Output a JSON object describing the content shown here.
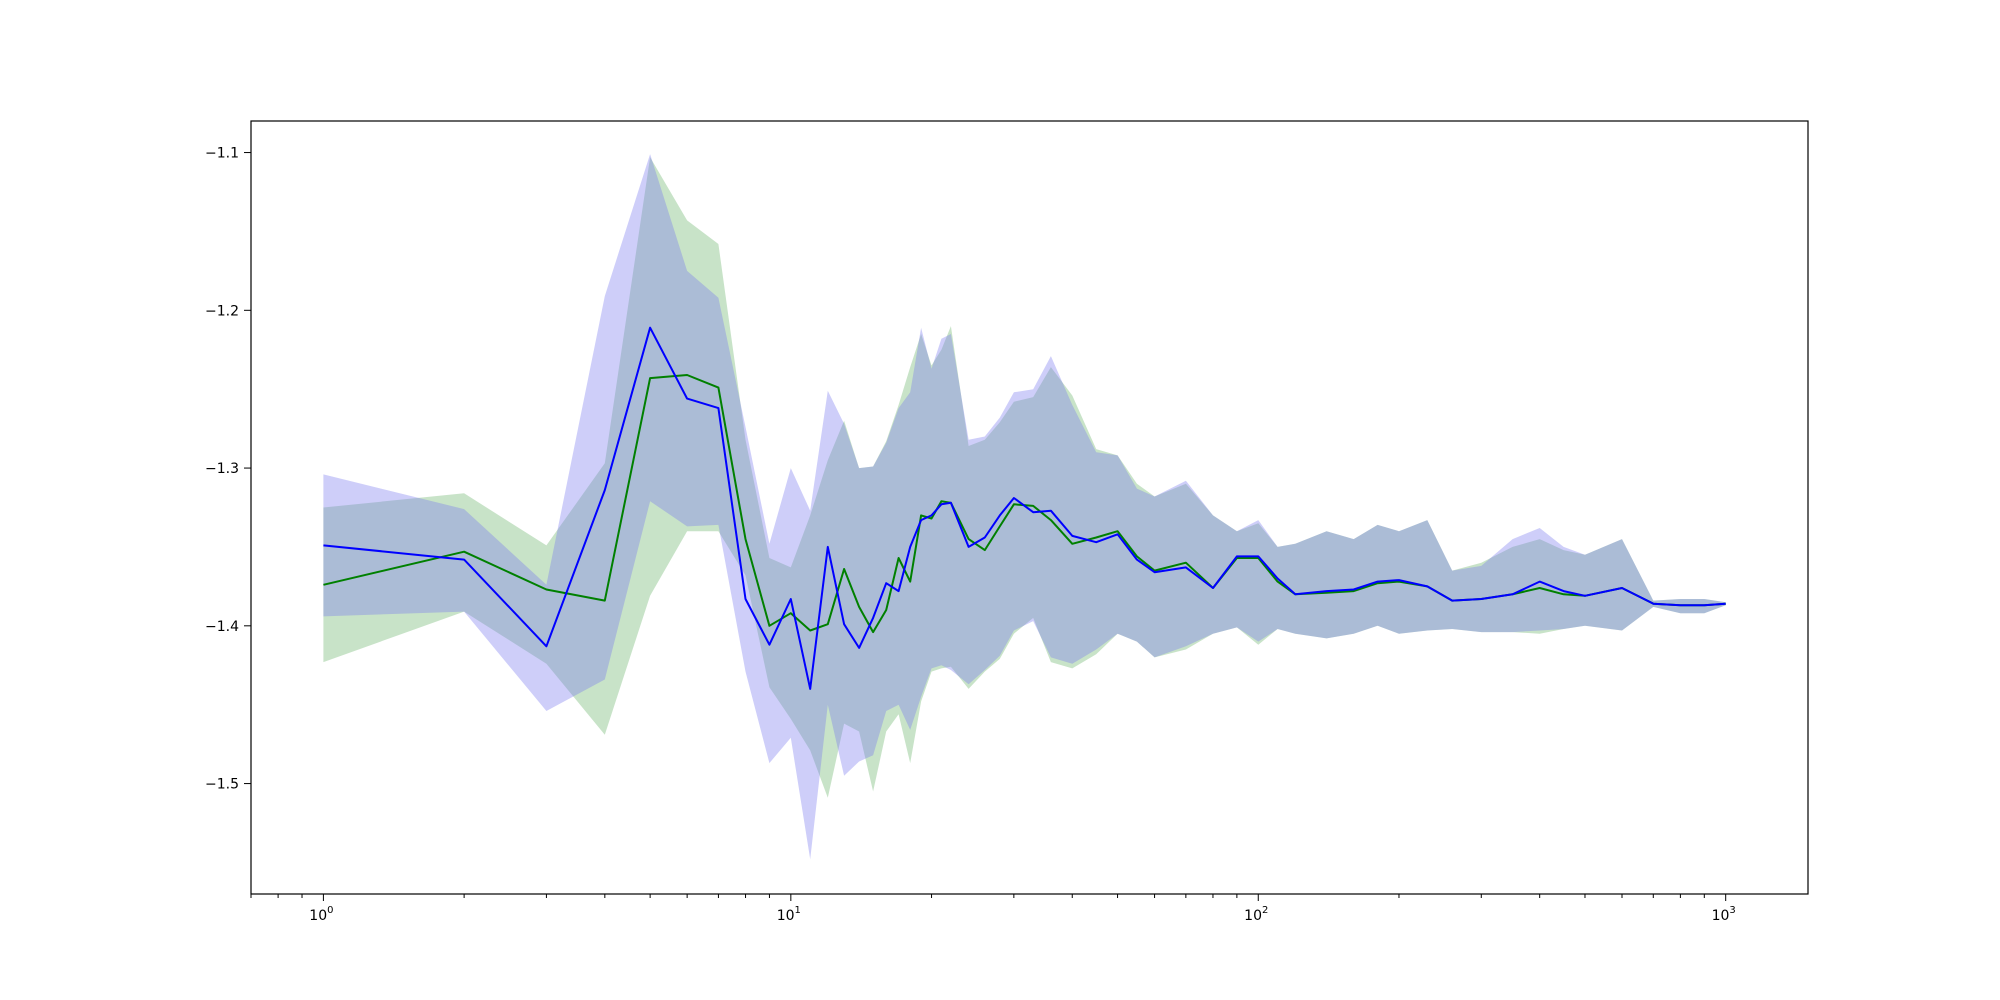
{
  "chart_data": {
    "type": "line",
    "title": "",
    "xlabel": "",
    "ylabel": "",
    "x_scale": "log",
    "xlim": [
      0.7,
      1500
    ],
    "ylim": [
      -1.57,
      -1.08
    ],
    "grid": false,
    "legend": "none",
    "x_ticks": [
      {
        "value": 1,
        "base": "10",
        "exp": "0"
      },
      {
        "value": 10,
        "base": "10",
        "exp": "1"
      },
      {
        "value": 100,
        "base": "10",
        "exp": "2"
      },
      {
        "value": 1000,
        "base": "10",
        "exp": "3"
      }
    ],
    "y_ticks": [
      {
        "value": -1.1,
        "label": "−1.1"
      },
      {
        "value": -1.2,
        "label": "−1.2"
      },
      {
        "value": -1.3,
        "label": "−1.3"
      },
      {
        "value": -1.4,
        "label": "−1.4"
      },
      {
        "value": -1.5,
        "label": "−1.5"
      }
    ],
    "series": [
      {
        "color": "#008000",
        "band_color": "#66b266",
        "x": [
          1,
          2,
          3,
          4,
          5,
          6,
          7,
          8,
          9,
          10,
          11,
          12,
          13,
          14,
          15,
          16,
          17,
          18,
          19,
          20,
          21,
          22,
          24,
          26,
          28,
          30,
          33,
          36,
          40,
          45,
          50,
          55,
          60,
          70,
          80,
          90,
          100,
          110,
          120,
          140,
          160,
          180,
          200,
          230,
          260,
          300,
          350,
          400,
          450,
          500,
          600,
          700,
          800,
          900,
          1000
        ],
        "y": [
          -1.374,
          -1.353,
          -1.377,
          -1.384,
          -1.243,
          -1.241,
          -1.249,
          -1.345,
          -1.4,
          -1.392,
          -1.403,
          -1.399,
          -1.364,
          -1.388,
          -1.404,
          -1.39,
          -1.357,
          -1.372,
          -1.33,
          -1.332,
          -1.321,
          -1.322,
          -1.345,
          -1.352,
          -1.337,
          -1.323,
          -1.324,
          -1.333,
          -1.348,
          -1.344,
          -1.34,
          -1.356,
          -1.365,
          -1.36,
          -1.376,
          -1.357,
          -1.357,
          -1.372,
          -1.38,
          -1.379,
          -1.378,
          -1.373,
          -1.372,
          -1.375,
          -1.384,
          -1.383,
          -1.38,
          -1.376,
          -1.38,
          -1.381,
          -1.376,
          -1.386,
          -1.387,
          -1.387,
          -1.386
        ],
        "upper": [
          -1.325,
          -1.316,
          -1.349,
          -1.297,
          -1.103,
          -1.143,
          -1.158,
          -1.282,
          -1.357,
          -1.363,
          -1.33,
          -1.295,
          -1.27,
          -1.3,
          -1.299,
          -1.283,
          -1.26,
          -1.236,
          -1.215,
          -1.235,
          -1.225,
          -1.21,
          -1.286,
          -1.282,
          -1.271,
          -1.258,
          -1.255,
          -1.236,
          -1.254,
          -1.288,
          -1.292,
          -1.31,
          -1.318,
          -1.31,
          -1.33,
          -1.34,
          -1.335,
          -1.35,
          -1.348,
          -1.34,
          -1.345,
          -1.336,
          -1.34,
          -1.333,
          -1.365,
          -1.36,
          -1.35,
          -1.345,
          -1.352,
          -1.355,
          -1.345,
          -1.384,
          -1.383,
          -1.383,
          -1.385
        ],
        "lower": [
          -1.423,
          -1.391,
          -1.424,
          -1.469,
          -1.381,
          -1.34,
          -1.34,
          -1.368,
          -1.439,
          -1.459,
          -1.479,
          -1.509,
          -1.462,
          -1.467,
          -1.505,
          -1.467,
          -1.456,
          -1.487,
          -1.448,
          -1.429,
          -1.427,
          -1.426,
          -1.44,
          -1.429,
          -1.421,
          -1.405,
          -1.395,
          -1.423,
          -1.427,
          -1.418,
          -1.405,
          -1.41,
          -1.42,
          -1.415,
          -1.405,
          -1.401,
          -1.412,
          -1.402,
          -1.405,
          -1.408,
          -1.405,
          -1.4,
          -1.405,
          -1.403,
          -1.402,
          -1.404,
          -1.404,
          -1.405,
          -1.402,
          -1.4,
          -1.403,
          -1.388,
          -1.392,
          -1.392,
          -1.387
        ]
      },
      {
        "color": "#0000ff",
        "band_color": "#7777ee",
        "x": [
          1,
          2,
          3,
          4,
          5,
          6,
          7,
          8,
          9,
          10,
          11,
          12,
          13,
          14,
          15,
          16,
          17,
          18,
          19,
          20,
          21,
          22,
          24,
          26,
          28,
          30,
          33,
          36,
          40,
          45,
          50,
          55,
          60,
          70,
          80,
          90,
          100,
          110,
          120,
          140,
          160,
          180,
          200,
          230,
          260,
          300,
          350,
          400,
          450,
          500,
          600,
          700,
          800,
          900,
          1000
        ],
        "y": [
          -1.349,
          -1.358,
          -1.413,
          -1.314,
          -1.211,
          -1.256,
          -1.262,
          -1.383,
          -1.412,
          -1.383,
          -1.44,
          -1.35,
          -1.399,
          -1.414,
          -1.395,
          -1.373,
          -1.378,
          -1.35,
          -1.333,
          -1.33,
          -1.323,
          -1.322,
          -1.35,
          -1.344,
          -1.33,
          -1.319,
          -1.328,
          -1.327,
          -1.343,
          -1.347,
          -1.342,
          -1.358,
          -1.366,
          -1.363,
          -1.376,
          -1.356,
          -1.356,
          -1.37,
          -1.38,
          -1.378,
          -1.377,
          -1.372,
          -1.371,
          -1.375,
          -1.384,
          -1.383,
          -1.38,
          -1.372,
          -1.378,
          -1.381,
          -1.376,
          -1.386,
          -1.387,
          -1.387,
          -1.386
        ],
        "upper": [
          -1.304,
          -1.326,
          -1.374,
          -1.191,
          -1.101,
          -1.175,
          -1.192,
          -1.274,
          -1.348,
          -1.3,
          -1.327,
          -1.251,
          -1.272,
          -1.3,
          -1.299,
          -1.284,
          -1.262,
          -1.252,
          -1.211,
          -1.237,
          -1.218,
          -1.215,
          -1.282,
          -1.28,
          -1.268,
          -1.252,
          -1.25,
          -1.229,
          -1.26,
          -1.29,
          -1.292,
          -1.313,
          -1.318,
          -1.308,
          -1.33,
          -1.34,
          -1.333,
          -1.35,
          -1.348,
          -1.34,
          -1.345,
          -1.336,
          -1.34,
          -1.333,
          -1.365,
          -1.362,
          -1.345,
          -1.338,
          -1.35,
          -1.355,
          -1.345,
          -1.384,
          -1.383,
          -1.383,
          -1.385
        ],
        "lower": [
          -1.394,
          -1.391,
          -1.454,
          -1.434,
          -1.321,
          -1.337,
          -1.336,
          -1.429,
          -1.487,
          -1.471,
          -1.548,
          -1.45,
          -1.495,
          -1.486,
          -1.482,
          -1.454,
          -1.45,
          -1.466,
          -1.445,
          -1.427,
          -1.425,
          -1.428,
          -1.437,
          -1.428,
          -1.419,
          -1.403,
          -1.397,
          -1.42,
          -1.424,
          -1.415,
          -1.405,
          -1.41,
          -1.42,
          -1.413,
          -1.405,
          -1.401,
          -1.41,
          -1.402,
          -1.405,
          -1.408,
          -1.405,
          -1.4,
          -1.405,
          -1.403,
          -1.402,
          -1.404,
          -1.404,
          -1.403,
          -1.402,
          -1.4,
          -1.403,
          -1.388,
          -1.392,
          -1.392,
          -1.387
        ]
      }
    ]
  }
}
